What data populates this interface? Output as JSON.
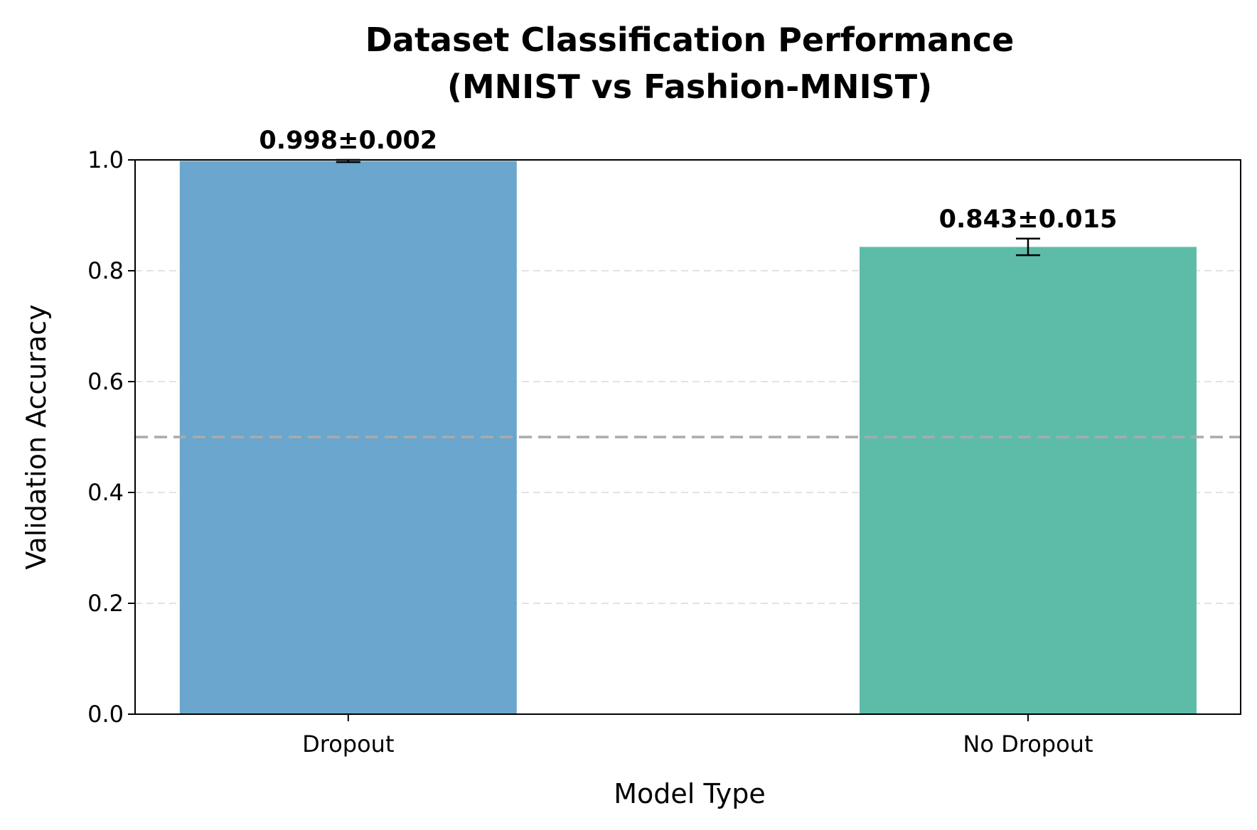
{
  "chart_data": {
    "type": "bar",
    "title": [
      "Dataset Classification Performance",
      "(MNIST vs Fashion-MNIST)"
    ],
    "xlabel": "Model Type",
    "ylabel": "Validation Accuracy",
    "categories": [
      "Dropout",
      "No Dropout"
    ],
    "values": [
      0.998,
      0.843
    ],
    "errors": [
      0.002,
      0.015
    ],
    "data_labels": [
      "0.998±0.002",
      "0.843±0.015"
    ],
    "colors": [
      "#6aa6cd",
      "#5dbca8"
    ],
    "ylim": [
      0,
      1
    ],
    "yticks": [
      0.0,
      0.2,
      0.4,
      0.6,
      0.8,
      1.0
    ],
    "ytick_labels": [
      "0.0",
      "0.2",
      "0.4",
      "0.6",
      "0.8",
      "1.0"
    ],
    "reference_line": {
      "y": 0.5,
      "style": "dashed",
      "color": "#aaaaaa"
    },
    "grid": {
      "y": true,
      "x": false,
      "style": "dashed",
      "color": "#e3e3e3"
    },
    "legend": false
  }
}
